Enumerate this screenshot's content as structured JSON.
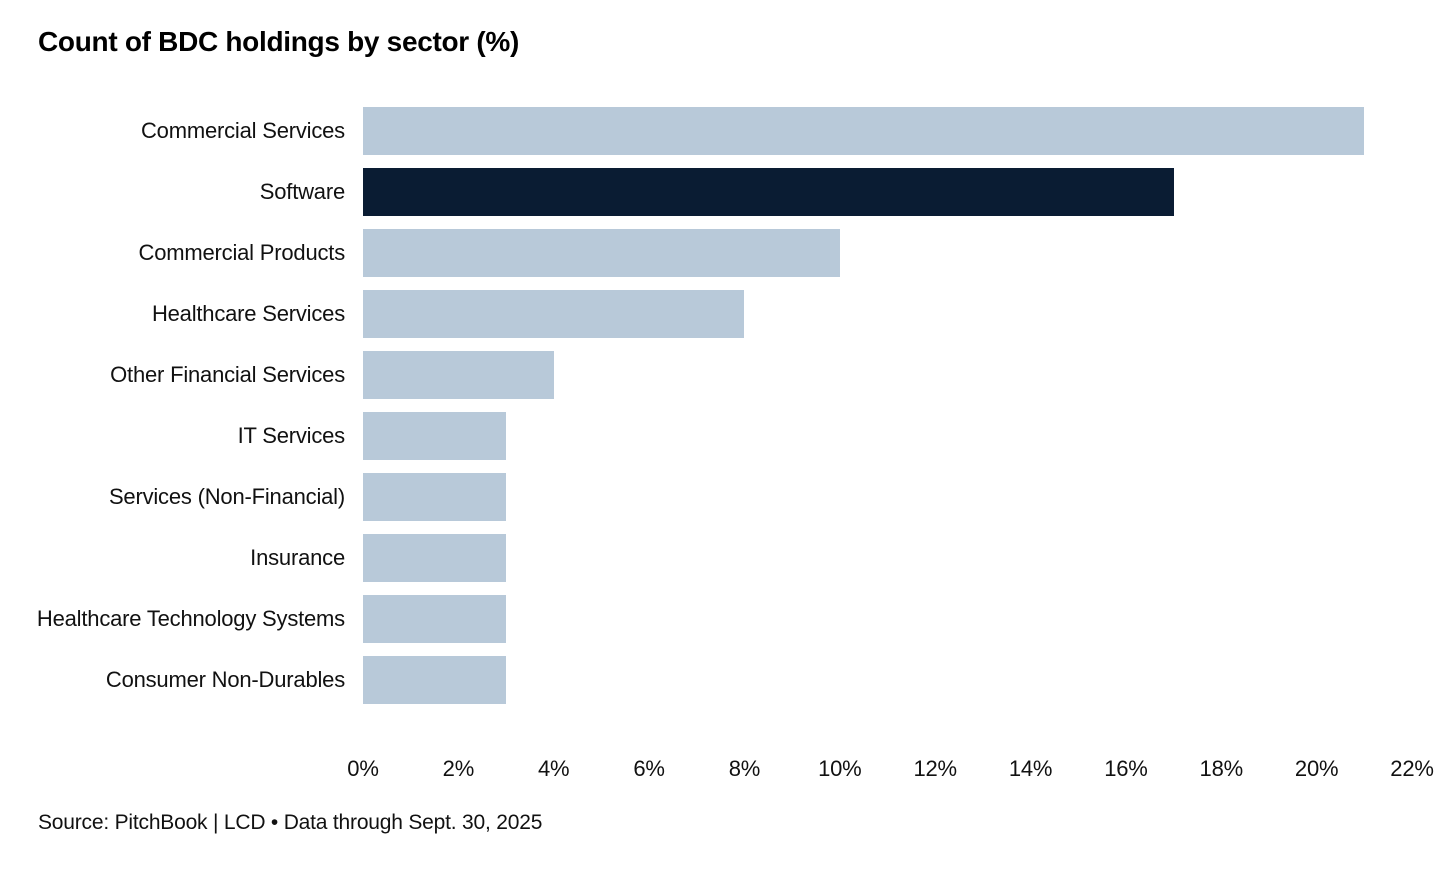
{
  "title": "Count of BDC holdings by sector (%)",
  "source": "Source: PitchBook | LCD • Data through Sept. 30, 2025",
  "colors": {
    "bar_default": "#b8c9d9",
    "bar_highlight": "#0a1c33",
    "text": "#111111",
    "background": "#ffffff"
  },
  "axis": {
    "ticks": [
      "0%",
      "2%",
      "4%",
      "6%",
      "8%",
      "10%",
      "12%",
      "14%",
      "16%",
      "18%",
      "20%",
      "22%"
    ],
    "max": 22
  },
  "chart_data": {
    "type": "bar",
    "orientation": "horizontal",
    "title": "Count of BDC holdings by sector (%)",
    "categories": [
      "Commercial Services",
      "Software",
      "Commercial Products",
      "Healthcare Services",
      "Other Financial Services",
      "IT Services",
      "Services (Non-Financial)",
      "Insurance",
      "Healthcare Technology Systems",
      "Consumer Non-Durables"
    ],
    "values": [
      21,
      17,
      10,
      8,
      4,
      3,
      3,
      3,
      3,
      3
    ],
    "unit": "%",
    "highlighted_category": "Software",
    "xlabel": "",
    "ylabel": "",
    "xlim": [
      0,
      22
    ],
    "grid": false,
    "legend": false
  }
}
